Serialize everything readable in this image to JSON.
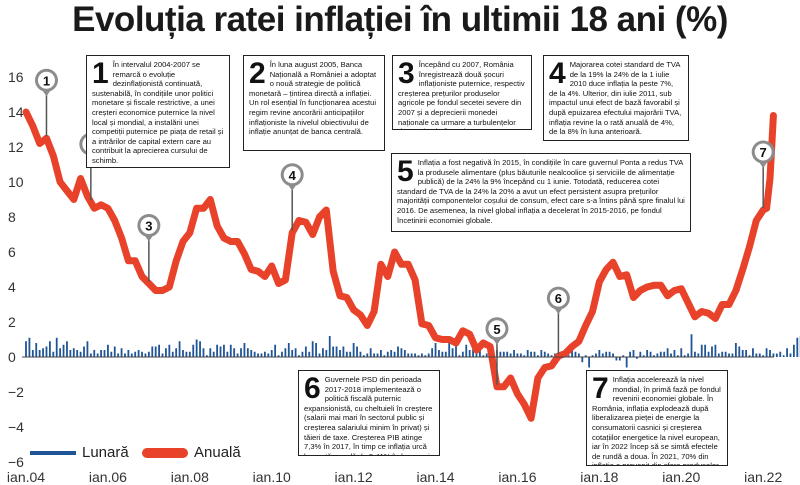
{
  "title": "Evoluția ratei inflației în ultimii 18 ani (%)",
  "colors": {
    "annual": "#e8432a",
    "monthly": "#1f5496",
    "pin": "#8c8c8c"
  },
  "legend": [
    {
      "label": "Lunară",
      "color": "#1f5496"
    },
    {
      "label": "Anuală",
      "color": "#e8432a"
    }
  ],
  "notes": [
    {
      "num": "1",
      "text": "În intervalul 2004-2007 se remarcă o evoluție dezinflaționistă continuată, sustenabilă, în condițiile unor politici monetare și fiscale restrictive, a unei creșteri economice puternice la nivel local și mondial, a instalării unei competiții puternice pe piața de retail și a intrărilor de capital extern care au contribuit la aprecierea cursului de schimb."
    },
    {
      "num": "2",
      "text": "În luna august 2005, Banca Națională a României a adoptat o nouă strategie de politică monetară – țintirea directă a inflației. Un rol esențial în funcționarea acestui regim revine ancorării anticipațiilor inflaționiste la nivelul obiectivului de inflație anunțat de banca centrală."
    },
    {
      "num": "3",
      "text": "Începând cu 2007, România înregistrează două șocuri inflaționiste puternice, respectiv creșterea prețurilor produselor agricole pe fondul secetei severe din 2007 și a deprecierii monedei naționale ca urmare a turbulențelor de pe piețele financiare internaționale."
    },
    {
      "num": "4",
      "text": "Majorarea cotei standard de TVA de la 19% la 24% de la 1 iulie 2010 duce inflația la peste 7%, de la 4%. Ulterior, din iulie 2011, sub impactul unui efect de bază favorabil și după epuizarea efectului majorării TVA, inflația revine la o rată anuală de 4%, de la 8% în luna anterioară."
    },
    {
      "num": "5",
      "text": "Inflația a fost negativă în 2015, în condițiile în care guvernul Ponta a redus TVA la produsele alimentare (plus băuturile nealcoolice și serviciile de alimentație publică) de la 24% la 9% începând cu 1 iunie. Totodată, reducerea cotei standard de TVA de la 24% la 20% a avut un efect persistent asupra prețurilor majorității componentelor coșului de consum, efect care s-a întins până spre finalul lui 2016. De asemenea, la nivel global inflația a decelerat în 2015-2016, pe fondul încetinirii economiei globale."
    },
    {
      "num": "6",
      "text": "Guvernele PSD din perioada 2017-2018 implementează o politică fiscală puternic expansionistă, cu cheltuieli în creștere (salarii mai mari în sectorul public și creșterea salariului minim în privat) și tăieri de taxe. Creșterea PIB atinge 7,3% în 2017, în timp ce inflația urcă la o rată anuală de 5,41% în luna mai 2018, un nivel nemaiatins din 2013."
    },
    {
      "num": "7",
      "text": "Inflația accelerează la nivel mondial, în primă fază pe fondul revenirii economiei globale. În România, inflația explodează după liberalizarea pieței de energie la consumatorii casnici și creșterea cotațiilor energetice la nivel european, iar în 2022 încep să se simtă efectele de rundă a doua. În 2021, 70% din inflație a provenit din sfera produselor energetice."
    }
  ],
  "chart_data": {
    "type": "line",
    "title": "Evoluția ratei inflației în ultimii 18 ani (%)",
    "xlabel": "",
    "ylabel": "",
    "ylim": [
      -6,
      16
    ],
    "yticks": [
      -6,
      -4,
      -2,
      0,
      2,
      4,
      6,
      8,
      10,
      12,
      14,
      16
    ],
    "x_tick_labels": [
      "ian.04",
      "ian.06",
      "ian.08",
      "ian.10",
      "ian.12",
      "ian.14",
      "ian.16",
      "ian.18",
      "ian.20",
      "ian.22"
    ],
    "x_start": "2004-01",
    "x_end": "2022-03",
    "grid": false,
    "legend_position": "bottom-left",
    "series": [
      {
        "name": "Anuală",
        "type": "line",
        "color": "#e8432a",
        "points": [
          [
            "2004-01",
            14.0
          ],
          [
            "2004-03",
            13.2
          ],
          [
            "2004-05",
            12.2
          ],
          [
            "2004-07",
            12.5
          ],
          [
            "2004-09",
            11.5
          ],
          [
            "2004-11",
            10.0
          ],
          [
            "2005-01",
            9.5
          ],
          [
            "2005-03",
            9.0
          ],
          [
            "2005-05",
            10.2
          ],
          [
            "2005-07",
            9.2
          ],
          [
            "2005-09",
            8.5
          ],
          [
            "2005-11",
            8.7
          ],
          [
            "2006-01",
            8.5
          ],
          [
            "2006-03",
            7.8
          ],
          [
            "2006-05",
            6.8
          ],
          [
            "2006-07",
            5.5
          ],
          [
            "2006-09",
            5.5
          ],
          [
            "2006-11",
            4.6
          ],
          [
            "2007-01",
            4.2
          ],
          [
            "2007-03",
            3.8
          ],
          [
            "2007-05",
            3.8
          ],
          [
            "2007-07",
            4.0
          ],
          [
            "2007-09",
            5.5
          ],
          [
            "2007-11",
            6.6
          ],
          [
            "2008-01",
            7.1
          ],
          [
            "2008-03",
            8.5
          ],
          [
            "2008-05",
            8.5
          ],
          [
            "2008-07",
            9.0
          ],
          [
            "2008-09",
            7.5
          ],
          [
            "2008-11",
            6.8
          ],
          [
            "2009-01",
            6.6
          ],
          [
            "2009-03",
            6.6
          ],
          [
            "2009-05",
            5.9
          ],
          [
            "2009-07",
            5.0
          ],
          [
            "2009-09",
            4.9
          ],
          [
            "2009-11",
            4.6
          ],
          [
            "2010-01",
            5.2
          ],
          [
            "2010-03",
            4.2
          ],
          [
            "2010-05",
            4.4
          ],
          [
            "2010-07",
            7.1
          ],
          [
            "2010-09",
            7.8
          ],
          [
            "2010-11",
            7.7
          ],
          [
            "2011-01",
            7.0
          ],
          [
            "2011-03",
            8.0
          ],
          [
            "2011-05",
            8.4
          ],
          [
            "2011-07",
            4.9
          ],
          [
            "2011-09",
            3.5
          ],
          [
            "2011-11",
            3.4
          ],
          [
            "2012-01",
            2.7
          ],
          [
            "2012-03",
            2.4
          ],
          [
            "2012-05",
            1.8
          ],
          [
            "2012-07",
            2.6
          ],
          [
            "2012-09",
            5.3
          ],
          [
            "2012-11",
            4.6
          ],
          [
            "2013-01",
            6.0
          ],
          [
            "2013-03",
            5.3
          ],
          [
            "2013-05",
            5.3
          ],
          [
            "2013-07",
            4.4
          ],
          [
            "2013-09",
            1.9
          ],
          [
            "2013-11",
            1.8
          ],
          [
            "2014-01",
            1.1
          ],
          [
            "2014-03",
            1.0
          ],
          [
            "2014-05",
            1.0
          ],
          [
            "2014-07",
            0.8
          ],
          [
            "2014-09",
            1.5
          ],
          [
            "2014-11",
            1.3
          ],
          [
            "2015-01",
            0.4
          ],
          [
            "2015-03",
            0.8
          ],
          [
            "2015-05",
            0.6
          ],
          [
            "2015-07",
            -1.7
          ],
          [
            "2015-09",
            -1.7
          ],
          [
            "2015-11",
            -1.2
          ],
          [
            "2016-01",
            -2.1
          ],
          [
            "2016-03",
            -2.7
          ],
          [
            "2016-05",
            -3.5
          ],
          [
            "2016-07",
            -1.2
          ],
          [
            "2016-09",
            -0.6
          ],
          [
            "2016-11",
            -0.5
          ],
          [
            "2017-01",
            0.05
          ],
          [
            "2017-03",
            0.2
          ],
          [
            "2017-05",
            0.6
          ],
          [
            "2017-07",
            0.9
          ],
          [
            "2017-09",
            1.8
          ],
          [
            "2017-11",
            2.6
          ],
          [
            "2018-01",
            4.3
          ],
          [
            "2018-03",
            5.0
          ],
          [
            "2018-05",
            5.41
          ],
          [
            "2018-07",
            4.6
          ],
          [
            "2018-09",
            4.7
          ],
          [
            "2018-11",
            3.4
          ],
          [
            "2019-01",
            3.8
          ],
          [
            "2019-03",
            4.0
          ],
          [
            "2019-05",
            4.1
          ],
          [
            "2019-07",
            4.1
          ],
          [
            "2019-09",
            3.5
          ],
          [
            "2019-11",
            3.8
          ],
          [
            "2020-01",
            3.9
          ],
          [
            "2020-03",
            3.1
          ],
          [
            "2020-05",
            2.3
          ],
          [
            "2020-07",
            2.6
          ],
          [
            "2020-09",
            2.5
          ],
          [
            "2020-11",
            2.2
          ],
          [
            "2021-01",
            3.0
          ],
          [
            "2021-03",
            3.0
          ],
          [
            "2021-05",
            3.8
          ],
          [
            "2021-07",
            5.0
          ],
          [
            "2021-09",
            6.3
          ],
          [
            "2021-11",
            7.8
          ],
          [
            "2022-01",
            8.4
          ],
          [
            "2022-02",
            8.5
          ],
          [
            "2022-03",
            10.2
          ],
          [
            "2022-04",
            13.8
          ]
        ]
      },
      {
        "name": "Lunară",
        "type": "bar",
        "color": "#1f5496",
        "values": [
          0.9,
          1.1,
          0.4,
          0.8,
          0.4,
          0.5,
          0.6,
          0.9,
          0.3,
          1.1,
          0.5,
          0.7,
          0.9,
          0.4,
          0.5,
          0.4,
          0.3,
          0.6,
          0.9,
          0.2,
          0.4,
          0.2,
          0.4,
          0.4,
          0.7,
          0.3,
          0.6,
          0.2,
          0.5,
          0.2,
          0.4,
          0.2,
          0.3,
          0.4,
          0.3,
          0.2,
          0.3,
          0.6,
          0.6,
          0.7,
          0.2,
          0.5,
          0.7,
          0.3,
          0.5,
          0.9,
          0.4,
          0.3,
          0.3,
          0.7,
          1.0,
          0.9,
          0.5,
          0.1,
          0.5,
          0.3,
          0.7,
          0.6,
          0.7,
          0.3,
          0.7,
          0.5,
          0.2,
          0.5,
          0.8,
          0.5,
          0.4,
          0.3,
          0.2,
          0.2,
          0.3,
          0.2,
          0.4,
          0.7,
          0.1,
          0.3,
          0.5,
          0.8,
          0.4,
          0.5,
          0.1,
          0.3,
          0.6,
          0.3,
          0.9,
          0.8,
          0.2,
          0.5,
          0.4,
          1.2,
          0.6,
          0.6,
          0.4,
          0.6,
          0.3,
          0.3,
          0.8,
          0.6,
          0.3,
          0.1,
          0.2,
          0.5,
          0.2,
          0.2,
          0.4,
          0.1,
          0.3,
          0.4,
          0.3,
          0.6,
          0.5,
          0.4,
          0.2,
          0.2,
          0.2,
          0.1,
          0.2,
          0.1,
          0.2,
          0.5,
          0.8,
          0.4,
          0.3,
          0.3,
          1.2,
          0.5,
          0.6,
          0.1,
          0.3,
          0.7,
          0.4,
          0.9,
          0.2,
          0.7,
          0.1,
          0.2,
          0.6,
          0.1,
          0.4,
          0.3,
          0.3,
          0.3,
          0.2,
          0.4,
          0.2,
          0.2,
          0.1,
          0.4,
          0.3,
          0.3,
          0.1,
          0.4,
          0.3,
          0.2,
          0.1,
          0.2,
          0.2,
          0.1,
          0.4,
          0.1,
          0.6,
          0.3,
          0.2,
          -0.3,
          0.1,
          -0.6,
          0.1,
          0.2,
          0.4,
          0.2,
          0.3,
          0.3,
          0.2,
          -0.2,
          -0.2,
          0.1,
          -0.6,
          0.3,
          0.4,
          -0.1,
          0.3,
          0.1,
          0.4,
          0.3,
          0.1,
          0.2,
          0.3,
          0.3,
          0.5,
          0.2,
          0.4,
          0.1,
          0.5,
          0.1,
          0.2,
          1.3,
          0.3,
          0.2,
          0.7,
          0.7,
          0.3,
          0.6,
          0.7,
          0.2,
          0.3,
          0.3,
          0.2,
          0.2,
          0.8,
          0.6,
          0.4,
          0.4,
          0.1,
          0.5,
          0.2,
          0.2,
          0.1,
          0.5,
          0.4,
          0.2,
          0.2,
          0.3,
          0.1,
          0.5,
          0.2,
          0.7,
          1.1,
          1.2,
          0.5,
          1.0,
          0.9,
          3.7
        ]
      }
    ],
    "annotations": [
      {
        "label": "1",
        "date": "2004-07"
      },
      {
        "label": "2",
        "date": "2005-08"
      },
      {
        "label": "3",
        "date": "2007-01"
      },
      {
        "label": "4",
        "date": "2010-07"
      },
      {
        "label": "5",
        "date": "2015-07"
      },
      {
        "label": "6",
        "date": "2017-01"
      },
      {
        "label": "7",
        "date": "2022-01"
      }
    ]
  }
}
